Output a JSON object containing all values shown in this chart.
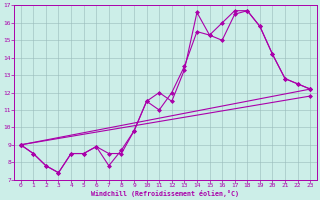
{
  "xlabel": "Windchill (Refroidissement éolien,°C)",
  "bg_color": "#cceee8",
  "grid_color": "#aacccc",
  "line_color": "#aa00aa",
  "xlim": [
    -0.5,
    23.5
  ],
  "ylim": [
    7,
    17
  ],
  "xticks": [
    0,
    1,
    2,
    3,
    4,
    5,
    6,
    7,
    8,
    9,
    10,
    11,
    12,
    13,
    14,
    15,
    16,
    17,
    18,
    19,
    20,
    21,
    22,
    23
  ],
  "yticks": [
    7,
    8,
    9,
    10,
    11,
    12,
    13,
    14,
    15,
    16,
    17
  ],
  "curve1_x": [
    0,
    1,
    2,
    3,
    4,
    5,
    6,
    7,
    8,
    9,
    10,
    11,
    12,
    13,
    14,
    15,
    16,
    17,
    18,
    19,
    20,
    21,
    22,
    23
  ],
  "curve1_y": [
    9.0,
    8.5,
    7.8,
    7.4,
    8.5,
    8.5,
    8.9,
    7.8,
    8.7,
    9.8,
    11.5,
    12.0,
    11.5,
    13.3,
    16.6,
    15.3,
    16.0,
    16.7,
    16.7,
    15.8,
    14.2,
    12.8,
    12.5,
    12.2
  ],
  "curve2_x": [
    0,
    1,
    2,
    3,
    4,
    5,
    6,
    7,
    8,
    9,
    10,
    11,
    12,
    13,
    14,
    15,
    16,
    17,
    18,
    19,
    20,
    21,
    22,
    23
  ],
  "curve2_y": [
    9.0,
    8.5,
    7.8,
    7.4,
    8.5,
    8.5,
    8.9,
    8.5,
    8.5,
    9.8,
    11.5,
    11.0,
    12.0,
    13.5,
    15.5,
    15.3,
    15.0,
    16.5,
    16.7,
    15.8,
    14.2,
    12.8,
    12.5,
    12.2
  ],
  "line1_x": [
    0,
    23
  ],
  "line1_y": [
    9.0,
    12.2
  ],
  "line2_x": [
    0,
    23
  ],
  "line2_y": [
    9.0,
    11.8
  ]
}
